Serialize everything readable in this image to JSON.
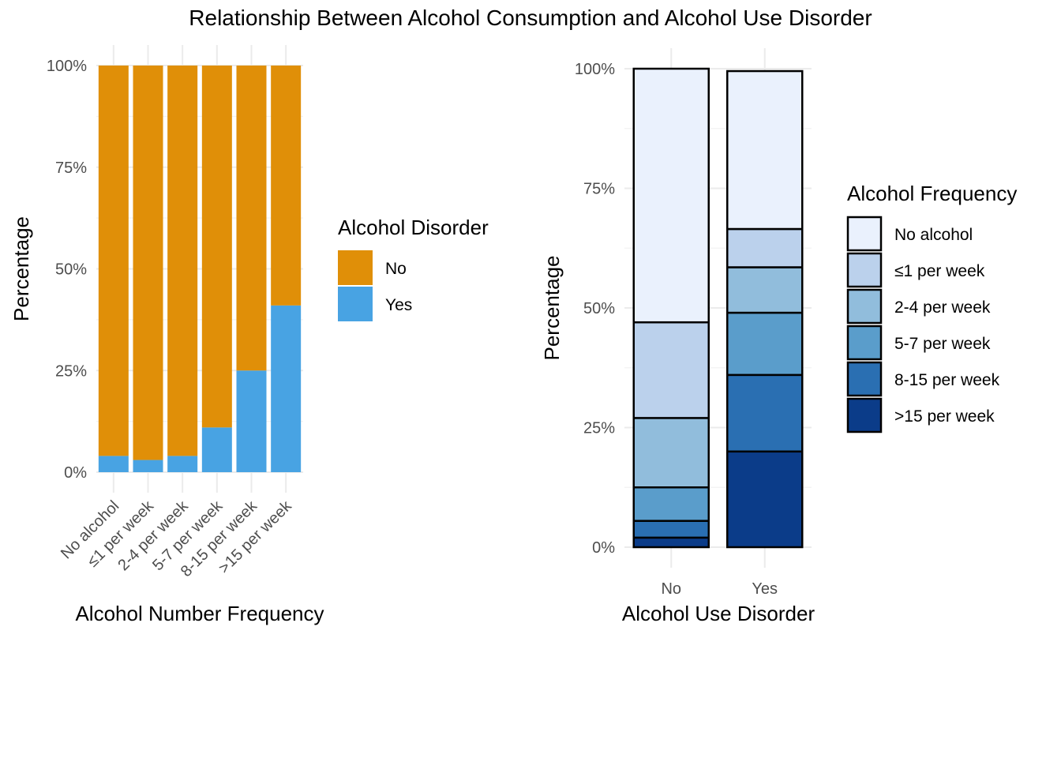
{
  "title": "Relationship Between Alcohol Consumption and Alcohol Use Disorder",
  "chart_data": [
    {
      "type": "bar",
      "stacked": true,
      "title": "",
      "xlabel": "Alcohol Number Frequency",
      "ylabel": "Percentage",
      "ylim": [
        0,
        1
      ],
      "y_ticks": [
        "0%",
        "25%",
        "50%",
        "75%",
        "100%"
      ],
      "grid": true,
      "categories": [
        "No alcohol",
        "≤1 per week",
        "2-4 per week",
        "5-7 per week",
        "8-15 per week",
        ">15 per week"
      ],
      "legend": {
        "title": "Alcohol Disorder",
        "position": "right"
      },
      "series": [
        {
          "name": "Yes",
          "color": "#48A3E3",
          "values": [
            0.04,
            0.03,
            0.04,
            0.11,
            0.25,
            0.41
          ]
        },
        {
          "name": "No",
          "color": "#E08F08",
          "values": [
            0.96,
            0.97,
            0.96,
            0.89,
            0.75,
            0.59
          ]
        }
      ]
    },
    {
      "type": "bar",
      "stacked": true,
      "title": "",
      "xlabel": "Alcohol Use Disorder",
      "ylabel": "Percentage",
      "ylim": [
        0,
        1
      ],
      "y_ticks": [
        "0%",
        "25%",
        "50%",
        "75%",
        "100%"
      ],
      "grid": true,
      "categories": [
        "No",
        "Yes"
      ],
      "legend": {
        "title": "Alcohol Frequency",
        "position": "right"
      },
      "series": [
        {
          "name": "No alcohol",
          "color": "#EAF1FD",
          "values": [
            0.53,
            0.33
          ]
        },
        {
          "name": "≤1 per week",
          "color": "#BBD1EC",
          "values": [
            0.2,
            0.08
          ]
        },
        {
          "name": "2-4 per week",
          "color": "#91BDDC",
          "values": [
            0.145,
            0.095
          ]
        },
        {
          "name": "5-7 per week",
          "color": "#5A9DCB",
          "values": [
            0.07,
            0.13
          ]
        },
        {
          "name": "8-15 per week",
          "color": "#2A6FB2",
          "values": [
            0.035,
            0.16
          ]
        },
        {
          "name": ">15 per week",
          "color": "#0B3C89",
          "values": [
            0.02,
            0.2
          ]
        }
      ]
    }
  ]
}
